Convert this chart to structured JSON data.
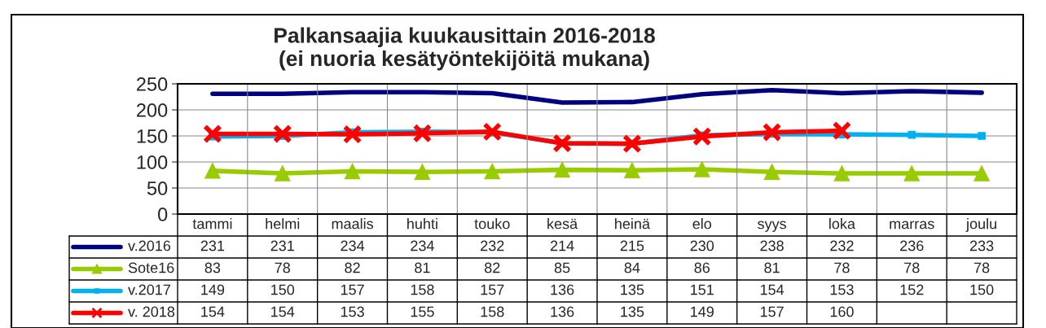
{
  "chart_data": {
    "type": "line",
    "title": "Palkansaajia kuukausittain 2016-2018\n(ei nuoria kesätyöntekijöitä mukana)",
    "categories": [
      "tammi",
      "helmi",
      "maalis",
      "huhti",
      "touko",
      "kesä",
      "heinä",
      "elo",
      "syys",
      "loka",
      "marras",
      "joulu"
    ],
    "series": [
      {
        "name": "v.2016",
        "color": "#000080",
        "marker": "none",
        "values": [
          231,
          231,
          234,
          234,
          232,
          214,
          215,
          230,
          238,
          232,
          236,
          233
        ]
      },
      {
        "name": "Sote16",
        "color": "#99cc00",
        "marker": "triangle",
        "values": [
          83,
          78,
          82,
          81,
          82,
          85,
          84,
          86,
          81,
          78,
          78,
          78
        ]
      },
      {
        "name": "v.2017",
        "color": "#00b0f0",
        "marker": "square",
        "values": [
          149,
          150,
          157,
          158,
          157,
          136,
          135,
          151,
          154,
          153,
          152,
          150
        ]
      },
      {
        "name": "v. 2018",
        "color": "#ff0000",
        "marker": "cross",
        "values": [
          154,
          154,
          153,
          155,
          158,
          136,
          135,
          149,
          157,
          160,
          null,
          null
        ]
      }
    ],
    "ylim": [
      0,
      250
    ],
    "yticks": [
      0,
      50,
      100,
      150,
      200,
      250
    ],
    "grid": true,
    "data_labels": true,
    "legend": "bottom left",
    "line_style": "solid"
  }
}
